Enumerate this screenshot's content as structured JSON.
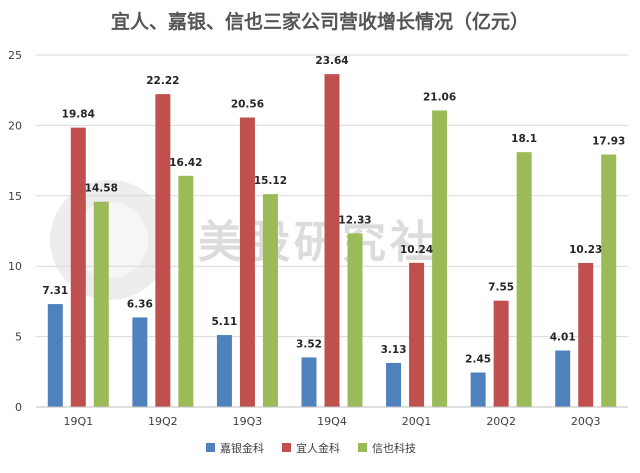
{
  "chart_data": {
    "type": "bar",
    "title": "宜人、嘉银、信也三家公司营收增长情况（亿元）",
    "categories": [
      "19Q1",
      "19Q2",
      "19Q3",
      "19Q4",
      "20Q1",
      "20Q2",
      "20Q3"
    ],
    "ylim": [
      0,
      25
    ],
    "yticks": [
      "0",
      "5",
      "10",
      "15",
      "20",
      "25"
    ],
    "grid": true,
    "legend_position": "bottom",
    "series": [
      {
        "name": "嘉银金科",
        "color": "#4f81bd",
        "values": [
          7.31,
          6.36,
          5.11,
          3.52,
          3.13,
          2.45,
          4.01
        ],
        "labels": [
          "7.31",
          "6.36",
          "5.11",
          "3.52",
          "3.13",
          "2.45",
          "4.01"
        ]
      },
      {
        "name": "宜人金科",
        "color": "#c0504d",
        "values": [
          19.84,
          22.22,
          20.56,
          23.64,
          10.24,
          7.55,
          10.23
        ],
        "labels": [
          "19.84",
          "22.22",
          "20.56",
          "23.64",
          "10.24",
          "7.55",
          "10.23"
        ]
      },
      {
        "name": "信也科技",
        "color": "#9bbb59",
        "values": [
          14.58,
          16.42,
          15.12,
          12.33,
          21.06,
          18.1,
          17.93
        ],
        "labels": [
          "14.58",
          "16.42",
          "15.12",
          "12.33",
          "21.06",
          "18.1",
          "17.93"
        ]
      }
    ]
  },
  "watermark": {
    "text": "美股研究社"
  }
}
